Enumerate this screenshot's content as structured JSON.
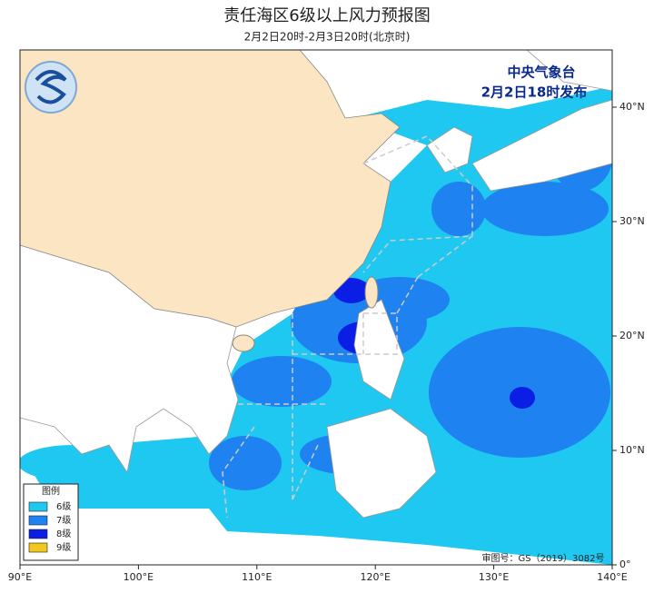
{
  "header": {
    "title": "责任海区6级以上风力预报图",
    "subtitle": "2月2日20时-2月3日20时(北京时)"
  },
  "issuer": {
    "name": "中央气象台",
    "time": "2月2日18时发布"
  },
  "legend": {
    "title": "图例",
    "items": [
      {
        "label": "6级",
        "color": "#1ec8f0"
      },
      {
        "label": "7级",
        "color": "#1e82f0"
      },
      {
        "label": "8级",
        "color": "#0a1ee6"
      },
      {
        "label": "9级",
        "color": "#f0c81e"
      }
    ]
  },
  "axes": {
    "x_labels": [
      "90°E",
      "100°E",
      "110°E",
      "120°E",
      "130°E",
      "140°E"
    ],
    "y_labels": [
      "0°",
      "10°N",
      "20°N",
      "30°N",
      "40°N"
    ]
  },
  "footer": {
    "approval": "审图号：GS（2019）3082号"
  }
}
